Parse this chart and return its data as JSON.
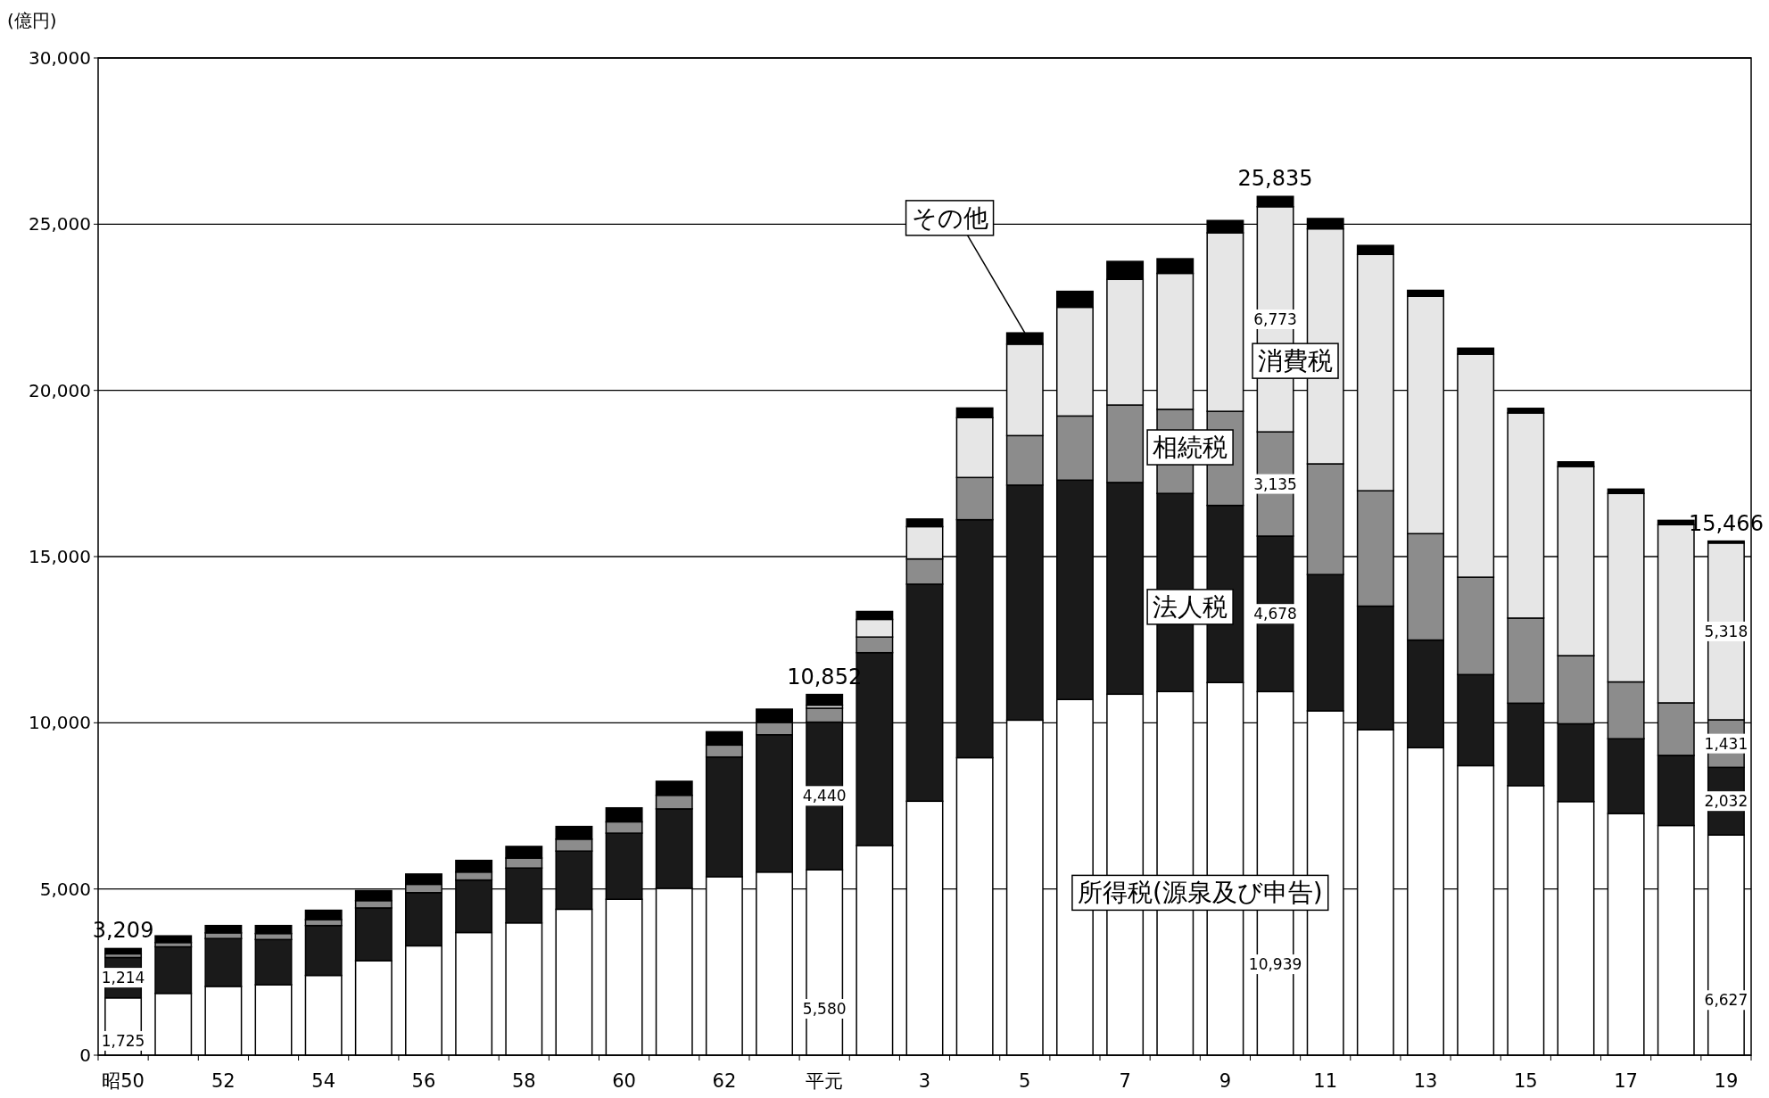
{
  "chart_data": {
    "type": "bar",
    "stacked": true,
    "ylabel": "(億円)",
    "categories": [
      "昭50",
      null,
      "52",
      null,
      "54",
      null,
      "56",
      null,
      "58",
      null,
      "60",
      null,
      "62",
      null,
      "平元",
      null,
      "3",
      null,
      "5",
      null,
      "7",
      null,
      "9",
      null,
      "11",
      null,
      "13",
      null,
      "15",
      null,
      "17",
      null,
      "19"
    ],
    "series": [
      {
        "name": "所得税(源泉及び申告)",
        "color": "#ffffff",
        "values": [
          1725,
          1860,
          2070,
          2120,
          2400,
          2840,
          3290,
          3690,
          3980,
          4390,
          4690,
          5020,
          5370,
          5510,
          5580,
          6310,
          7640,
          8950,
          10080,
          10700,
          10860,
          10940,
          11210,
          10939,
          10360,
          9790,
          9250,
          8710,
          8110,
          7630,
          7270,
          6910,
          6627
        ],
        "value_labels": [
          "1,725",
          null,
          null,
          null,
          null,
          null,
          null,
          null,
          null,
          null,
          null,
          null,
          null,
          null,
          "5,580",
          null,
          null,
          null,
          null,
          null,
          null,
          null,
          null,
          "10,939",
          null,
          null,
          null,
          null,
          null,
          null,
          null,
          null,
          "6,627"
        ]
      },
      {
        "name": "法人税",
        "color": "#1a1a1a",
        "values": [
          1214,
          1400,
          1440,
          1360,
          1500,
          1590,
          1600,
          1580,
          1650,
          1750,
          1990,
          2390,
          3600,
          4130,
          4440,
          5800,
          6530,
          7160,
          7070,
          6600,
          6370,
          5960,
          5330,
          4678,
          4100,
          3720,
          3240,
          2740,
          2480,
          2340,
          2250,
          2110,
          2032
        ],
        "value_labels": [
          "1,214",
          null,
          null,
          null,
          null,
          null,
          null,
          null,
          null,
          null,
          null,
          null,
          null,
          null,
          "4,440",
          null,
          null,
          null,
          null,
          null,
          null,
          null,
          null,
          "4,678",
          null,
          null,
          null,
          null,
          null,
          null,
          null,
          null,
          "2,032"
        ]
      },
      {
        "name": "相続税",
        "color": "#8c8c8c",
        "values": [
          110,
          130,
          170,
          180,
          180,
          220,
          250,
          240,
          300,
          360,
          340,
          410,
          360,
          370,
          420,
          470,
          760,
          1270,
          1490,
          1930,
          2330,
          2530,
          2830,
          3135,
          3330,
          3470,
          3200,
          2930,
          2560,
          2050,
          1710,
          1580,
          1431
        ],
        "value_labels": [
          null,
          null,
          null,
          null,
          null,
          null,
          null,
          null,
          null,
          null,
          null,
          null,
          null,
          null,
          null,
          null,
          null,
          null,
          null,
          null,
          null,
          null,
          null,
          "3,135",
          null,
          null,
          null,
          null,
          null,
          null,
          null,
          null,
          "1,431"
        ]
      },
      {
        "name": "消費税",
        "color": "#e6e6e6",
        "values": [
          null,
          null,
          null,
          null,
          null,
          null,
          null,
          null,
          null,
          null,
          null,
          null,
          null,
          null,
          90,
          530,
          970,
          1800,
          2750,
          3270,
          3780,
          4090,
          5370,
          6773,
          7070,
          7110,
          7140,
          6710,
          6170,
          5690,
          5670,
          5360,
          5318
        ],
        "value_labels": [
          null,
          null,
          null,
          null,
          null,
          null,
          null,
          null,
          null,
          null,
          null,
          null,
          null,
          null,
          null,
          null,
          null,
          null,
          null,
          null,
          null,
          null,
          null,
          "6,773",
          null,
          null,
          null,
          null,
          null,
          null,
          null,
          null,
          "5,318"
        ]
      },
      {
        "name": "その他",
        "color": "#000000",
        "values": [
          160,
          200,
          220,
          240,
          280,
          300,
          310,
          350,
          350,
          380,
          420,
          420,
          400,
          400,
          322,
          240,
          230,
          290,
          340,
          480,
          540,
          440,
          370,
          310,
          310,
          270,
          180,
          180,
          140,
          140,
          130,
          130,
          58
        ]
      }
    ],
    "totals": [
      "3,209",
      null,
      null,
      null,
      null,
      null,
      null,
      null,
      null,
      null,
      null,
      null,
      null,
      null,
      "10,852",
      null,
      null,
      null,
      null,
      null,
      null,
      null,
      null,
      "25,835",
      null,
      null,
      null,
      null,
      null,
      null,
      null,
      null,
      "15,466"
    ],
    "ylim": [
      0,
      30000
    ],
    "yticks": [
      0,
      {
        "value": 5000,
        "label": "5,000"
      },
      {
        "value": 10000,
        "label": "10,000"
      },
      {
        "value": 15000,
        "label": "15,000"
      },
      {
        "value": 20000,
        "label": "20,000"
      },
      {
        "value": 25000,
        "label": "25,000"
      },
      {
        "value": 30000,
        "label": "30,000"
      }
    ],
    "grid": "y"
  }
}
